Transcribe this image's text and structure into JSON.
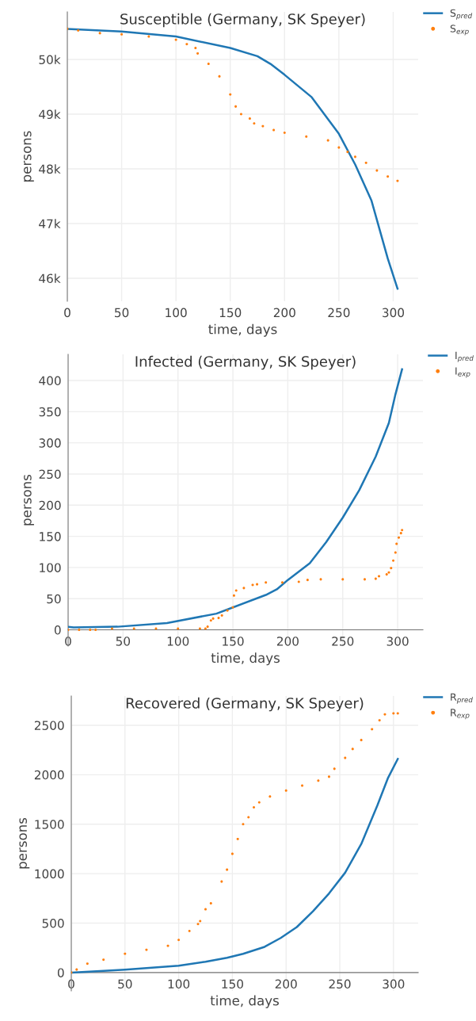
{
  "chart_data": [
    {
      "type": "line",
      "title": "Susceptible (Germany, SK Speyer)",
      "xlabel": "time, days",
      "ylabel": "persons",
      "xlim": [
        0,
        323
      ],
      "xticks": [
        0,
        50,
        100,
        150,
        200,
        250,
        300
      ],
      "ylim": [
        45580,
        50870
      ],
      "yticks": [
        {
          "value": 46000,
          "label": "46k"
        },
        {
          "value": 47000,
          "label": "47k"
        },
        {
          "value": 48000,
          "label": "48k"
        },
        {
          "value": 49000,
          "label": "49k"
        },
        {
          "value": 50000,
          "label": "50k"
        }
      ],
      "grid": true,
      "legend": "top right",
      "series": [
        {
          "name": "S$_{pred}$",
          "color": "#1f77b4",
          "x": [
            0,
            50,
            100,
            150,
            175,
            187,
            200,
            225,
            250,
            265,
            280,
            295,
            304
          ],
          "values": [
            50560,
            50510,
            50420,
            50210,
            50060,
            49920,
            49720,
            49310,
            48640,
            48080,
            47420,
            46360,
            45810
          ]
        },
        {
          "name": "S$_{exp}$",
          "type": "scatter",
          "color": "#ff7f0e",
          "x": [
            0,
            10,
            30,
            50,
            75,
            100,
            110,
            118,
            120,
            130,
            140,
            150,
            155,
            160,
            168,
            172,
            180,
            190,
            200,
            220,
            240,
            250,
            258,
            265,
            275,
            285,
            295,
            304
          ],
          "values": [
            50560,
            50530,
            50480,
            50460,
            50420,
            50360,
            50280,
            50210,
            50110,
            49920,
            49690,
            49360,
            49140,
            49000,
            48920,
            48830,
            48780,
            48710,
            48660,
            48590,
            48520,
            48390,
            48310,
            48220,
            48110,
            47970,
            47860,
            47780
          ]
        }
      ]
    },
    {
      "type": "line",
      "title": "Infected (Germany, SK Speyer)",
      "xlabel": "time, days",
      "ylabel": "persons",
      "xlim": [
        0,
        323
      ],
      "xticks": [
        0,
        50,
        100,
        150,
        200,
        250,
        300
      ],
      "ylim": [
        -26,
        442
      ],
      "yticks": [
        0,
        50,
        100,
        150,
        200,
        250,
        300,
        350,
        400
      ],
      "grid": true,
      "legend": "top right",
      "series": [
        {
          "name": "I$_{pred}$",
          "color": "#1f77b4",
          "x": [
            0,
            5,
            45,
            90,
            135,
            150,
            180,
            190,
            200,
            220,
            235,
            250,
            265,
            280,
            292,
            298,
            304
          ],
          "values": [
            5,
            4,
            5,
            11,
            26,
            36,
            56,
            65,
            80,
            107,
            141,
            180,
            224,
            278,
            332,
            378,
            418
          ]
        },
        {
          "name": "I$_{exp}$",
          "type": "scatter",
          "color": "#ff7f0e",
          "x": [
            0,
            10,
            20,
            25,
            40,
            60,
            80,
            100,
            120,
            125,
            127,
            130,
            132,
            137,
            140,
            145,
            150,
            151,
            153,
            160,
            168,
            172,
            180,
            195,
            210,
            218,
            230,
            250,
            270,
            280,
            283,
            290,
            292,
            294,
            296,
            298,
            299,
            301,
            303,
            304
          ],
          "values": [
            0,
            0,
            0,
            0,
            2,
            2,
            2,
            2,
            2,
            2,
            5,
            15,
            18,
            19,
            23,
            31,
            36,
            55,
            63,
            67,
            72,
            73,
            76,
            76,
            77,
            80,
            81,
            81,
            81,
            82,
            86,
            89,
            92,
            99,
            111,
            124,
            138,
            148,
            155,
            160
          ]
        }
      ]
    },
    {
      "type": "line",
      "title": "Recovered (Germany, SK Speyer)",
      "xlabel": "time, days",
      "ylabel": "persons",
      "xlim": [
        0,
        323
      ],
      "xticks": [
        0,
        50,
        100,
        150,
        200,
        250,
        300
      ],
      "ylim": [
        -185,
        2796
      ],
      "yticks": [
        0,
        500,
        1000,
        1500,
        2000,
        2500
      ],
      "grid": true,
      "legend": "top right",
      "series": [
        {
          "name": "R$_{pred}$",
          "color": "#1f77b4",
          "x": [
            0,
            50,
            100,
            125,
            145,
            160,
            180,
            195,
            210,
            225,
            240,
            255,
            270,
            285,
            295,
            304
          ],
          "values": [
            0,
            30,
            70,
            110,
            150,
            190,
            260,
            350,
            460,
            620,
            800,
            1010,
            1300,
            1690,
            1970,
            2160
          ]
        },
        {
          "name": "R$_{exp}$",
          "type": "scatter",
          "color": "#ff7f0e",
          "x": [
            0,
            5,
            15,
            30,
            50,
            70,
            90,
            100,
            110,
            118,
            120,
            125,
            130,
            140,
            145,
            150,
            155,
            160,
            165,
            170,
            175,
            185,
            200,
            215,
            230,
            240,
            245,
            255,
            262,
            270,
            280,
            287,
            292,
            300,
            304
          ],
          "values": [
            0,
            30,
            90,
            130,
            190,
            230,
            270,
            330,
            420,
            490,
            520,
            640,
            700,
            920,
            1040,
            1200,
            1350,
            1500,
            1570,
            1670,
            1720,
            1780,
            1840,
            1890,
            1940,
            1980,
            2060,
            2170,
            2260,
            2350,
            2460,
            2550,
            2610,
            2620,
            2620
          ]
        }
      ]
    }
  ]
}
